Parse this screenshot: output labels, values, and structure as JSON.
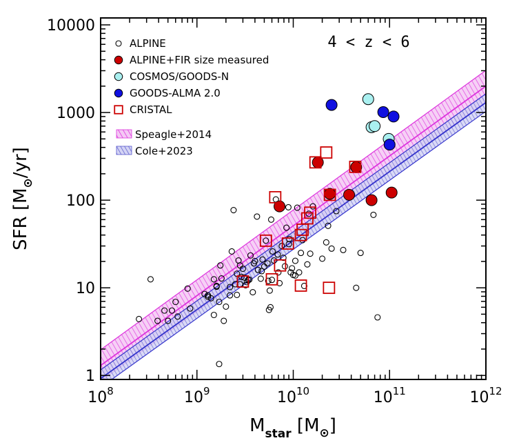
{
  "chart_data": {
    "type": "scatter",
    "title": "",
    "annotation": "4 < z < 6",
    "xlabel": {
      "main": "M",
      "sub": "star",
      "unit": "M",
      "unit_sub": "⊙"
    },
    "ylabel": {
      "main": "SFR",
      "unit": "M",
      "unit_sub": "⊙",
      "unit_suffix": "/yr"
    },
    "x_scale": "log",
    "y_scale": "log",
    "xlim": [
      100000000.0,
      1000000000000.0
    ],
    "ylim": [
      0.9,
      12000
    ],
    "x_ticks": [
      {
        "value": 100000000.0,
        "base": "10",
        "exp": "8"
      },
      {
        "value": 1000000000.0,
        "base": "10",
        "exp": "9"
      },
      {
        "value": 10000000000.0,
        "base": "10",
        "exp": "10"
      },
      {
        "value": 100000000000.0,
        "base": "10",
        "exp": "11"
      },
      {
        "value": 1000000000000.0,
        "base": "10",
        "exp": "12"
      }
    ],
    "y_ticks": [
      {
        "value": 1,
        "label": "1"
      },
      {
        "value": 10,
        "label": "10"
      },
      {
        "value": 100,
        "label": "100"
      },
      {
        "value": 1000,
        "label": "1000"
      },
      {
        "value": 10000,
        "label": "10000"
      }
    ],
    "legend": {
      "placement": "top-left",
      "markers": [
        {
          "label": "ALPINE",
          "marker": "open-circle",
          "color": "#000000"
        },
        {
          "label": "ALPINE+FIR size measured",
          "marker": "filled-circle",
          "color": "#cc0000"
        },
        {
          "label": "COSMOS/GOODS-N",
          "marker": "filled-circle",
          "color": "#aaf0f0"
        },
        {
          "label": "GOODS-ALMA 2.0",
          "marker": "filled-circle",
          "color": "#1010e0"
        },
        {
          "label": "CRISTAL",
          "marker": "open-square",
          "color": "#cc0000"
        }
      ],
      "bands": [
        {
          "label": "Speagle+2014",
          "color": "#dd33dd"
        },
        {
          "label": "Cole+2023",
          "color": "#5555cc"
        }
      ]
    },
    "relations": [
      {
        "name": "Speagle+2014",
        "color": "#dd33dd",
        "center": [
          [
            100000000.0,
            1.3
          ],
          [
            1000000000000.0,
            2000
          ]
        ],
        "dex_width": 0.18
      },
      {
        "name": "Cole+2023",
        "color": "#3333cc",
        "center": [
          [
            100000000.0,
            0.92
          ],
          [
            1000000000000.0,
            1300
          ]
        ],
        "dex_width": 0.1
      }
    ],
    "series": [
      {
        "name": "ALPINE",
        "marker": "open-circle",
        "color": "#000000",
        "points": [
          [
            250000000.0,
            4.4
          ],
          [
            330000000.0,
            12.5
          ],
          [
            390000000.0,
            4.2
          ],
          [
            460000000.0,
            5.5
          ],
          [
            500000000.0,
            4.2
          ],
          [
            550000000.0,
            5.5
          ],
          [
            600000000.0,
            6.9
          ],
          [
            630000000.0,
            4.7
          ],
          [
            800000000.0,
            9.8
          ],
          [
            850000000.0,
            5.8
          ],
          [
            1200000000.0,
            8.5
          ],
          [
            1300000000.0,
            7.9
          ],
          [
            1400000000.0,
            7.6
          ],
          [
            1500000000.0,
            12.5
          ],
          [
            1500000000.0,
            4.9
          ],
          [
            1600000000.0,
            10.5
          ],
          [
            1700000000.0,
            6.9
          ],
          [
            1700000000.0,
            1.35
          ],
          [
            1750000000.0,
            18.0
          ],
          [
            1800000000.0,
            12.8
          ],
          [
            1900000000.0,
            4.2
          ],
          [
            2000000000.0,
            6.1
          ],
          [
            2200000000.0,
            10.2
          ],
          [
            2300000000.0,
            26.0
          ],
          [
            2400000000.0,
            77.0
          ],
          [
            2500000000.0,
            11.0
          ],
          [
            2600000000.0,
            14.5
          ],
          [
            2700000000.0,
            20.5
          ],
          [
            2800000000.0,
            18.0
          ],
          [
            2900000000.0,
            13.3
          ],
          [
            3000000000.0,
            16.5
          ],
          [
            3100000000.0,
            13.1
          ],
          [
            3200000000.0,
            10.7
          ],
          [
            3300000000.0,
            11.6
          ],
          [
            3500000000.0,
            12.4
          ],
          [
            3600000000.0,
            23.4
          ],
          [
            3800000000.0,
            8.9
          ],
          [
            4000000000.0,
            20.2
          ],
          [
            4200000000.0,
            65.0
          ],
          [
            4300000000.0,
            16.0
          ],
          [
            4600000000.0,
            12.7
          ],
          [
            4800000000.0,
            21.0
          ],
          [
            5000000000.0,
            17.5
          ],
          [
            5200000000.0,
            34.5
          ],
          [
            5400000000.0,
            19.0
          ],
          [
            5500000000.0,
            12.0
          ],
          [
            5700000000.0,
            9.3
          ],
          [
            5800000000.0,
            6.0
          ],
          [
            5900000000.0,
            60.0
          ],
          [
            6100000000.0,
            26.0
          ],
          [
            6300000000.0,
            20.5
          ],
          [
            6600000000.0,
            102.0
          ],
          [
            6900000000.0,
            24.0
          ],
          [
            7200000000.0,
            11.3
          ],
          [
            7600000000.0,
            30.0
          ],
          [
            7900000000.0,
            22.0
          ],
          [
            8200000000.0,
            17.6
          ],
          [
            8500000000.0,
            48.5
          ],
          [
            8900000000.0,
            83.0
          ],
          [
            9100000000.0,
            36.0
          ],
          [
            9400000000.0,
            15.0
          ],
          [
            9700000000.0,
            16.7
          ],
          [
            10000000000.0,
            14.0
          ],
          [
            10500000000.0,
            13.8
          ],
          [
            11000000000.0,
            82.0
          ],
          [
            11500000000.0,
            15.0
          ],
          [
            12000000000.0,
            25.0
          ],
          [
            12500000000.0,
            35.0
          ],
          [
            13000000000.0,
            10.5
          ],
          [
            14000000000.0,
            18.5
          ],
          [
            14500000000.0,
            70.0
          ],
          [
            15000000000.0,
            24.5
          ],
          [
            16000000000.0,
            85.0
          ],
          [
            20000000000.0,
            21.5
          ],
          [
            22000000000.0,
            33.0
          ],
          [
            25000000000.0,
            28.0
          ],
          [
            28000000000.0,
            75.0
          ],
          [
            33000000000.0,
            27.0
          ],
          [
            45000000000.0,
            10.0
          ],
          [
            50000000000.0,
            25.0
          ],
          [
            68000000000.0,
            68.0
          ],
          [
            75000000000.0,
            4.6
          ],
          [
            2200000000.0,
            8.2
          ],
          [
            3400000000.0,
            12.3
          ],
          [
            4700000000.0,
            15.5
          ],
          [
            5600000000.0,
            5.6
          ],
          [
            9000000000.0,
            31.5
          ],
          [
            10500000000.0,
            20.3
          ],
          [
            23000000000.0,
            51.0
          ],
          [
            6000000000.0,
            12.3
          ],
          [
            3900000000.0,
            19.0
          ],
          [
            1300000000.0,
            8.2
          ],
          [
            2600000000.0,
            8.3
          ],
          [
            7000000000.0,
            15.0
          ],
          [
            1600000000.0,
            10.3
          ],
          [
            2800000000.0,
            11.0
          ]
        ]
      },
      {
        "name": "ALPINE+FIR size measured",
        "marker": "filled-circle",
        "color": "#cc0000",
        "points": [
          [
            7200000000.0,
            85.0
          ],
          [
            18000000000.0,
            270.0
          ],
          [
            24000000000.0,
            118.0
          ],
          [
            38000000000.0,
            115.0
          ],
          [
            45000000000.0,
            238.0
          ],
          [
            65000000000.0,
            100.0
          ],
          [
            105000000000.0,
            122.0
          ]
        ]
      },
      {
        "name": "COSMOS/GOODS-N",
        "marker": "filled-circle",
        "color": "#aaf0f0",
        "points": [
          [
            60000000000.0,
            1420.0
          ],
          [
            65000000000.0,
            680.0
          ],
          [
            70000000000.0,
            700.0
          ],
          [
            98000000000.0,
            500.0
          ]
        ]
      },
      {
        "name": "GOODS-ALMA 2.0",
        "marker": "filled-circle",
        "color": "#1010e0",
        "points": [
          [
            25000000000.0,
            1220.0
          ],
          [
            86000000000.0,
            1010.0
          ],
          [
            100000000000.0,
            430.0
          ],
          [
            110000000000.0,
            900.0
          ]
        ]
      },
      {
        "name": "CRISTAL",
        "marker": "open-square",
        "color": "#cc0000",
        "points": [
          [
            3000000000.0,
            11.8
          ],
          [
            5200000000.0,
            34.5
          ],
          [
            6000000000.0,
            12.5
          ],
          [
            6500000000.0,
            108.0
          ],
          [
            7300000000.0,
            18.0
          ],
          [
            8800000000.0,
            32.0
          ],
          [
            12000000000.0,
            10.6
          ],
          [
            12500000000.0,
            46.0
          ],
          [
            14000000000.0,
            62.0
          ],
          [
            15000000000.0,
            72.0
          ],
          [
            17000000000.0,
            270.0
          ],
          [
            22000000000.0,
            350.0
          ],
          [
            23500000000.0,
            10.0
          ],
          [
            24000000000.0,
            115.0
          ],
          [
            44000000000.0,
            240.0
          ],
          [
            12000000000.0,
            40.0
          ]
        ]
      }
    ]
  }
}
